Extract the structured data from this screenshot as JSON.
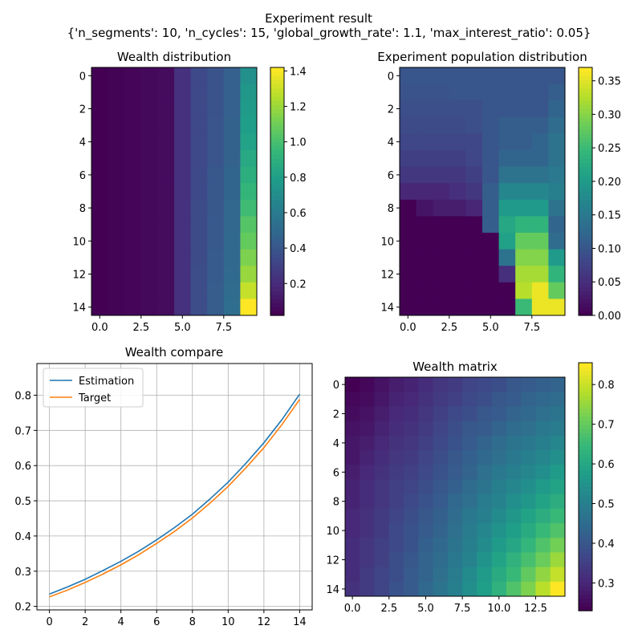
{
  "figure": {
    "title": "Experiment result",
    "subtitle": "{'n_segments': 10, 'n_cycles': 15, 'global_growth_rate': 1.1, 'max_interest_ratio': 0.05}"
  },
  "colormap": [
    "#440154",
    "#482878",
    "#3e4989",
    "#31688e",
    "#26828e",
    "#1f9e89",
    "#35b779",
    "#6ece58",
    "#b5de2b",
    "#fde725"
  ],
  "line_colors": {
    "estimation": "#1f77b4",
    "target": "#ff7f0e"
  },
  "chart_data": [
    {
      "id": "wealth-distribution",
      "type": "heatmap",
      "title": "Wealth distribution",
      "n_rows": 15,
      "n_cols": 10,
      "xticks": [
        0,
        2.5,
        5,
        7.5
      ],
      "xtick_labels": [
        "0.0",
        "2.5",
        "5.0",
        "7.5"
      ],
      "yticks": [
        0,
        2,
        4,
        6,
        8,
        10,
        12,
        14
      ],
      "ytick_labels": [
        "0",
        "2",
        "4",
        "6",
        "8",
        "10",
        "12",
        "14"
      ],
      "colorbar": {
        "vmin": 0.02,
        "vmax": 1.42,
        "ticks": [
          0.2,
          0.4,
          0.6,
          0.8,
          1.0,
          1.2,
          1.4
        ],
        "tick_labels": [
          "0.2",
          "0.4",
          "0.6",
          "0.8",
          "1.0",
          "1.2",
          "1.4"
        ]
      },
      "matrix": [
        [
          0.02,
          0.03,
          0.04,
          0.05,
          0.06,
          0.22,
          0.33,
          0.38,
          0.45,
          0.72
        ],
        [
          0.02,
          0.03,
          0.04,
          0.05,
          0.06,
          0.22,
          0.33,
          0.38,
          0.45,
          0.76
        ],
        [
          0.02,
          0.03,
          0.04,
          0.05,
          0.06,
          0.22,
          0.33,
          0.38,
          0.45,
          0.78
        ],
        [
          0.02,
          0.03,
          0.04,
          0.05,
          0.06,
          0.22,
          0.33,
          0.39,
          0.46,
          0.8
        ],
        [
          0.02,
          0.03,
          0.04,
          0.05,
          0.06,
          0.22,
          0.33,
          0.39,
          0.46,
          0.82
        ],
        [
          0.02,
          0.03,
          0.04,
          0.05,
          0.06,
          0.22,
          0.33,
          0.39,
          0.46,
          0.86
        ],
        [
          0.02,
          0.03,
          0.04,
          0.05,
          0.06,
          0.22,
          0.33,
          0.4,
          0.47,
          0.9
        ],
        [
          0.02,
          0.03,
          0.04,
          0.05,
          0.06,
          0.22,
          0.33,
          0.4,
          0.47,
          0.94
        ],
        [
          0.02,
          0.03,
          0.04,
          0.05,
          0.06,
          0.22,
          0.34,
          0.4,
          0.48,
          0.98
        ],
        [
          0.02,
          0.03,
          0.04,
          0.05,
          0.06,
          0.22,
          0.34,
          0.41,
          0.48,
          1.04
        ],
        [
          0.02,
          0.03,
          0.04,
          0.05,
          0.06,
          0.22,
          0.34,
          0.41,
          0.49,
          1.08
        ],
        [
          0.02,
          0.03,
          0.04,
          0.05,
          0.06,
          0.22,
          0.34,
          0.42,
          0.49,
          1.14
        ],
        [
          0.02,
          0.03,
          0.04,
          0.05,
          0.06,
          0.22,
          0.35,
          0.42,
          0.5,
          1.2
        ],
        [
          0.02,
          0.03,
          0.04,
          0.05,
          0.06,
          0.22,
          0.35,
          0.43,
          0.51,
          1.3
        ],
        [
          0.02,
          0.03,
          0.04,
          0.05,
          0.06,
          0.22,
          0.35,
          0.43,
          0.52,
          1.42
        ]
      ]
    },
    {
      "id": "experiment-population-distribution",
      "type": "heatmap",
      "title": "Experiment population distribution",
      "n_rows": 15,
      "n_cols": 10,
      "xticks": [
        0,
        2.5,
        5,
        7.5
      ],
      "xtick_labels": [
        "0.0",
        "2.5",
        "5.0",
        "7.5"
      ],
      "yticks": [
        0,
        2,
        4,
        6,
        8,
        10,
        12,
        14
      ],
      "ytick_labels": [
        "0",
        "2",
        "4",
        "6",
        "8",
        "10",
        "12",
        "14"
      ],
      "colorbar": {
        "vmin": 0.0,
        "vmax": 0.37,
        "ticks": [
          0.0,
          0.05,
          0.1,
          0.15,
          0.2,
          0.25,
          0.3,
          0.35
        ],
        "tick_labels": [
          "0.00",
          "0.05",
          "0.10",
          "0.15",
          "0.20",
          "0.25",
          "0.30",
          "0.35"
        ]
      },
      "matrix": [
        [
          0.1,
          0.1,
          0.1,
          0.1,
          0.1,
          0.1,
          0.1,
          0.1,
          0.1,
          0.1
        ],
        [
          0.095,
          0.095,
          0.095,
          0.1,
          0.1,
          0.1,
          0.1,
          0.1,
          0.1,
          0.11
        ],
        [
          0.09,
          0.09,
          0.09,
          0.09,
          0.09,
          0.1,
          0.1,
          0.1,
          0.1,
          0.12
        ],
        [
          0.085,
          0.085,
          0.085,
          0.085,
          0.09,
          0.1,
          0.11,
          0.11,
          0.11,
          0.13
        ],
        [
          0.08,
          0.08,
          0.08,
          0.08,
          0.08,
          0.1,
          0.11,
          0.11,
          0.12,
          0.14
        ],
        [
          0.07,
          0.07,
          0.07,
          0.07,
          0.08,
          0.1,
          0.12,
          0.12,
          0.12,
          0.14
        ],
        [
          0.06,
          0.06,
          0.06,
          0.06,
          0.07,
          0.1,
          0.14,
          0.14,
          0.14,
          0.15
        ],
        [
          0.04,
          0.04,
          0.04,
          0.05,
          0.06,
          0.11,
          0.17,
          0.17,
          0.17,
          0.16
        ],
        [
          0.0,
          0.02,
          0.03,
          0.03,
          0.04,
          0.11,
          0.2,
          0.2,
          0.2,
          0.14
        ],
        [
          0.0,
          0.0,
          0.0,
          0.0,
          0.0,
          0.11,
          0.22,
          0.24,
          0.24,
          0.12
        ],
        [
          0.0,
          0.0,
          0.0,
          0.0,
          0.0,
          0.0,
          0.21,
          0.28,
          0.28,
          0.13
        ],
        [
          0.0,
          0.0,
          0.0,
          0.0,
          0.0,
          0.0,
          0.14,
          0.3,
          0.3,
          0.2
        ],
        [
          0.0,
          0.0,
          0.0,
          0.0,
          0.0,
          0.0,
          0.05,
          0.32,
          0.32,
          0.24
        ],
        [
          0.0,
          0.0,
          0.0,
          0.0,
          0.0,
          0.0,
          0.0,
          0.33,
          0.36,
          0.28
        ],
        [
          0.0,
          0.0,
          0.0,
          0.0,
          0.0,
          0.0,
          0.0,
          0.25,
          0.36,
          0.36
        ]
      ]
    },
    {
      "id": "wealth-compare",
      "type": "line",
      "title": "Wealth compare",
      "grid": true,
      "legend_position": "top-left",
      "x": [
        0,
        1,
        2,
        3,
        4,
        5,
        6,
        7,
        8,
        9,
        10,
        11,
        12,
        13,
        14
      ],
      "xlim": [
        -0.7,
        14.7
      ],
      "ylim": [
        0.19,
        0.89
      ],
      "xticks": [
        0,
        2,
        4,
        6,
        8,
        10,
        12,
        14
      ],
      "xtick_labels": [
        "0",
        "2",
        "4",
        "6",
        "8",
        "10",
        "12",
        "14"
      ],
      "yticks": [
        0.2,
        0.3,
        0.4,
        0.5,
        0.6,
        0.7,
        0.8
      ],
      "ytick_labels": [
        "0.2",
        "0.3",
        "0.4",
        "0.5",
        "0.6",
        "0.7",
        "0.8"
      ],
      "series": [
        {
          "name": "Estimation",
          "values": [
            0.235,
            0.255,
            0.277,
            0.302,
            0.328,
            0.357,
            0.389,
            0.424,
            0.462,
            0.506,
            0.553,
            0.607,
            0.665,
            0.73,
            0.803
          ]
        },
        {
          "name": "Target",
          "values": [
            0.227,
            0.246,
            0.268,
            0.292,
            0.318,
            0.347,
            0.379,
            0.413,
            0.451,
            0.494,
            0.541,
            0.594,
            0.651,
            0.716,
            0.788
          ]
        }
      ]
    },
    {
      "id": "wealth-matrix",
      "type": "heatmap",
      "title": "Wealth matrix",
      "n_rows": 15,
      "n_cols": 15,
      "xticks": [
        0,
        2.5,
        5,
        7.5,
        10,
        12.5
      ],
      "xtick_labels": [
        "0.0",
        "2.5",
        "5.0",
        "7.5",
        "10.0",
        "12.5"
      ],
      "yticks": [
        0,
        2,
        4,
        6,
        8,
        10,
        12,
        14
      ],
      "ytick_labels": [
        "0",
        "2",
        "4",
        "6",
        "8",
        "10",
        "12",
        "14"
      ],
      "colorbar": {
        "vmin": 0.23,
        "vmax": 0.855,
        "ticks": [
          0.3,
          0.4,
          0.5,
          0.6,
          0.7,
          0.8
        ],
        "tick_labels": [
          "0.3",
          "0.4",
          "0.5",
          "0.6",
          "0.7",
          "0.8"
        ]
      },
      "matrix": [
        [
          0.23,
          0.24,
          0.26,
          0.28,
          0.29,
          0.31,
          0.33,
          0.34,
          0.36,
          0.37,
          0.38,
          0.4,
          0.41,
          0.42,
          0.43
        ],
        [
          0.24,
          0.25,
          0.27,
          0.29,
          0.3,
          0.32,
          0.34,
          0.35,
          0.37,
          0.38,
          0.4,
          0.41,
          0.43,
          0.44,
          0.45
        ],
        [
          0.25,
          0.26,
          0.28,
          0.3,
          0.31,
          0.33,
          0.35,
          0.37,
          0.38,
          0.4,
          0.41,
          0.43,
          0.44,
          0.46,
          0.47
        ],
        [
          0.26,
          0.27,
          0.29,
          0.31,
          0.32,
          0.34,
          0.36,
          0.38,
          0.4,
          0.41,
          0.43,
          0.45,
          0.46,
          0.48,
          0.49
        ],
        [
          0.27,
          0.28,
          0.3,
          0.32,
          0.33,
          0.35,
          0.37,
          0.39,
          0.41,
          0.43,
          0.45,
          0.47,
          0.48,
          0.5,
          0.52
        ],
        [
          0.27,
          0.29,
          0.31,
          0.33,
          0.34,
          0.36,
          0.38,
          0.4,
          0.42,
          0.44,
          0.46,
          0.48,
          0.5,
          0.52,
          0.54
        ],
        [
          0.28,
          0.3,
          0.32,
          0.34,
          0.35,
          0.37,
          0.39,
          0.41,
          0.43,
          0.46,
          0.48,
          0.5,
          0.52,
          0.54,
          0.57
        ],
        [
          0.29,
          0.31,
          0.33,
          0.35,
          0.36,
          0.38,
          0.4,
          0.42,
          0.45,
          0.47,
          0.5,
          0.52,
          0.54,
          0.57,
          0.59
        ],
        [
          0.29,
          0.31,
          0.33,
          0.35,
          0.37,
          0.39,
          0.41,
          0.44,
          0.46,
          0.49,
          0.51,
          0.54,
          0.56,
          0.59,
          0.62
        ],
        [
          0.3,
          0.32,
          0.34,
          0.36,
          0.38,
          0.4,
          0.42,
          0.45,
          0.48,
          0.5,
          0.53,
          0.56,
          0.59,
          0.62,
          0.65
        ],
        [
          0.3,
          0.32,
          0.34,
          0.37,
          0.39,
          0.41,
          0.43,
          0.46,
          0.49,
          0.52,
          0.55,
          0.58,
          0.61,
          0.65,
          0.68
        ],
        [
          0.31,
          0.33,
          0.35,
          0.37,
          0.39,
          0.42,
          0.44,
          0.47,
          0.5,
          0.53,
          0.57,
          0.6,
          0.64,
          0.68,
          0.72
        ],
        [
          0.31,
          0.33,
          0.35,
          0.38,
          0.4,
          0.43,
          0.45,
          0.48,
          0.51,
          0.55,
          0.59,
          0.63,
          0.67,
          0.71,
          0.76
        ],
        [
          0.31,
          0.34,
          0.36,
          0.38,
          0.41,
          0.43,
          0.46,
          0.49,
          0.53,
          0.57,
          0.61,
          0.65,
          0.7,
          0.75,
          0.8
        ],
        [
          0.32,
          0.34,
          0.36,
          0.39,
          0.41,
          0.44,
          0.47,
          0.5,
          0.54,
          0.58,
          0.63,
          0.68,
          0.73,
          0.79,
          0.855
        ]
      ]
    }
  ]
}
